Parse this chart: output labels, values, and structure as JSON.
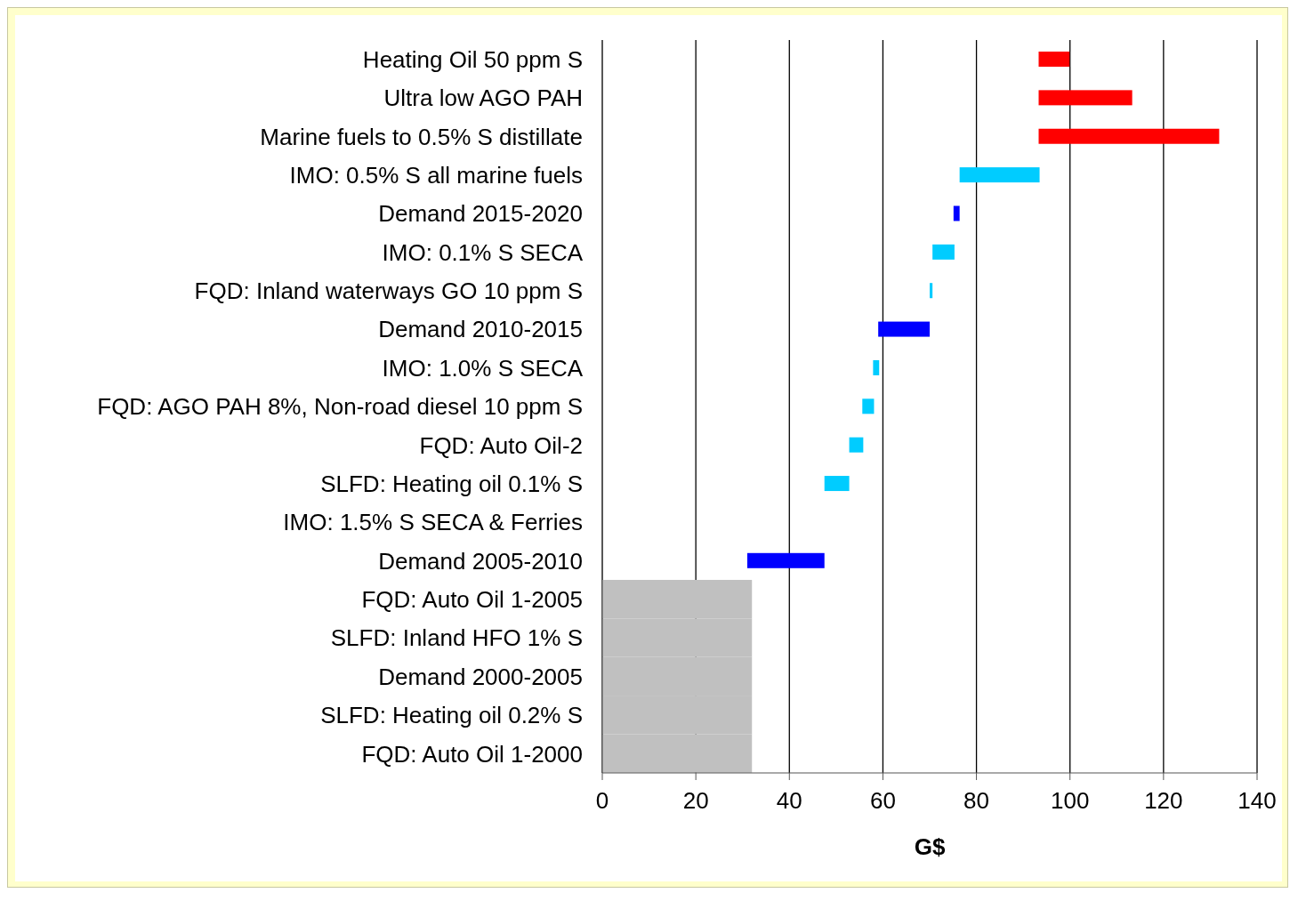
{
  "chart_data": {
    "type": "bar",
    "orientation": "horizontal",
    "xlabel": "G$",
    "categories": [
      "Heating Oil 50 ppm S",
      "Ultra low AGO PAH",
      "Marine fuels to 0.5% S distillate",
      "IMO: 0.5% S all marine fuels",
      "Demand 2015-2020",
      "IMO: 0.1% S SECA",
      "FQD: Inland waterways GO 10 ppm S",
      "Demand 2010-2015",
      "IMO: 1.0% S SECA",
      "FQD: AGO PAH 8%, Non-road diesel 10 ppm S",
      "FQD: Auto Oil-2",
      "SLFD: Heating oil 0.1% S",
      "IMO: 1.5% S SECA & Ferries",
      "Demand 2005-2010",
      "FQD: Auto Oil 1-2005",
      "SLFD: Inland HFO 1% S",
      "Demand 2000-2005",
      "SLFD: Heating oil 0.2% S",
      "FQD: Auto Oil 1-2000"
    ],
    "base": [
      93.3,
      93.3,
      93.3,
      76.4,
      75.1,
      70.6,
      70,
      59,
      57.9,
      55.6,
      52.8,
      47.5,
      null,
      31,
      0,
      0,
      0,
      0,
      0
    ],
    "values": [
      6.6,
      20,
      38.6,
      17.1,
      1.3,
      4.7,
      0.6,
      11,
      1.3,
      2.5,
      3,
      5.3,
      null,
      16.5,
      32,
      32,
      32,
      32,
      32
    ],
    "colors": [
      "#ff0000",
      "#ff0000",
      "#ff0000",
      "#00ccff",
      "#0000ff",
      "#00ccff",
      "#00ccff",
      "#0000ff",
      "#00ccff",
      "#00ccff",
      "#00ccff",
      "#00ccff",
      "#00ccff",
      "#0000ff",
      "#c0c0c0",
      "#c0c0c0",
      "#c0c0c0",
      "#c0c0c0",
      "#c0c0c0"
    ],
    "xlim": [
      0,
      140
    ],
    "xticks": [
      0,
      20,
      40,
      60,
      80,
      100,
      120,
      140
    ],
    "grid": "x",
    "legend": false
  }
}
